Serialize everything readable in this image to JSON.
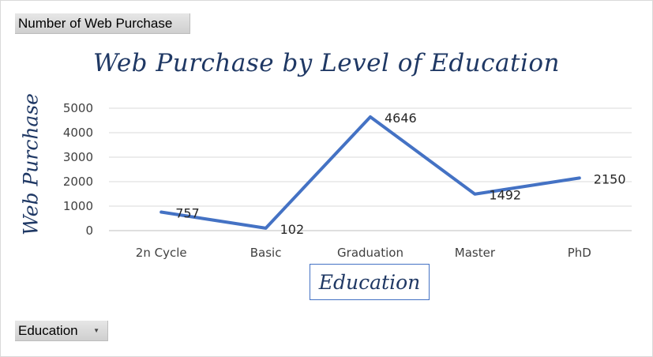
{
  "value_field_button": {
    "label": "Number of Web Purchase"
  },
  "axis_field_button": {
    "label": "Education",
    "icon": "dropdown-arrow-icon"
  },
  "chart_data": {
    "type": "line",
    "title": "Web Purchase by Level of Education",
    "xlabel": "Education",
    "ylabel": "Web Purchase",
    "categories": [
      "2n Cycle",
      "Basic",
      "Graduation",
      "Master",
      "PhD"
    ],
    "series": [
      {
        "values": [
          757,
          102,
          4646,
          1492,
          2150
        ]
      }
    ],
    "data_labels": [
      "757",
      "102",
      "4646",
      "1492",
      "2150"
    ],
    "yticks": [
      0,
      1000,
      2000,
      3000,
      4000,
      5000
    ],
    "ylim": [
      0,
      5000
    ],
    "grid": true,
    "legend": "none",
    "line_color": "#4472c4"
  }
}
